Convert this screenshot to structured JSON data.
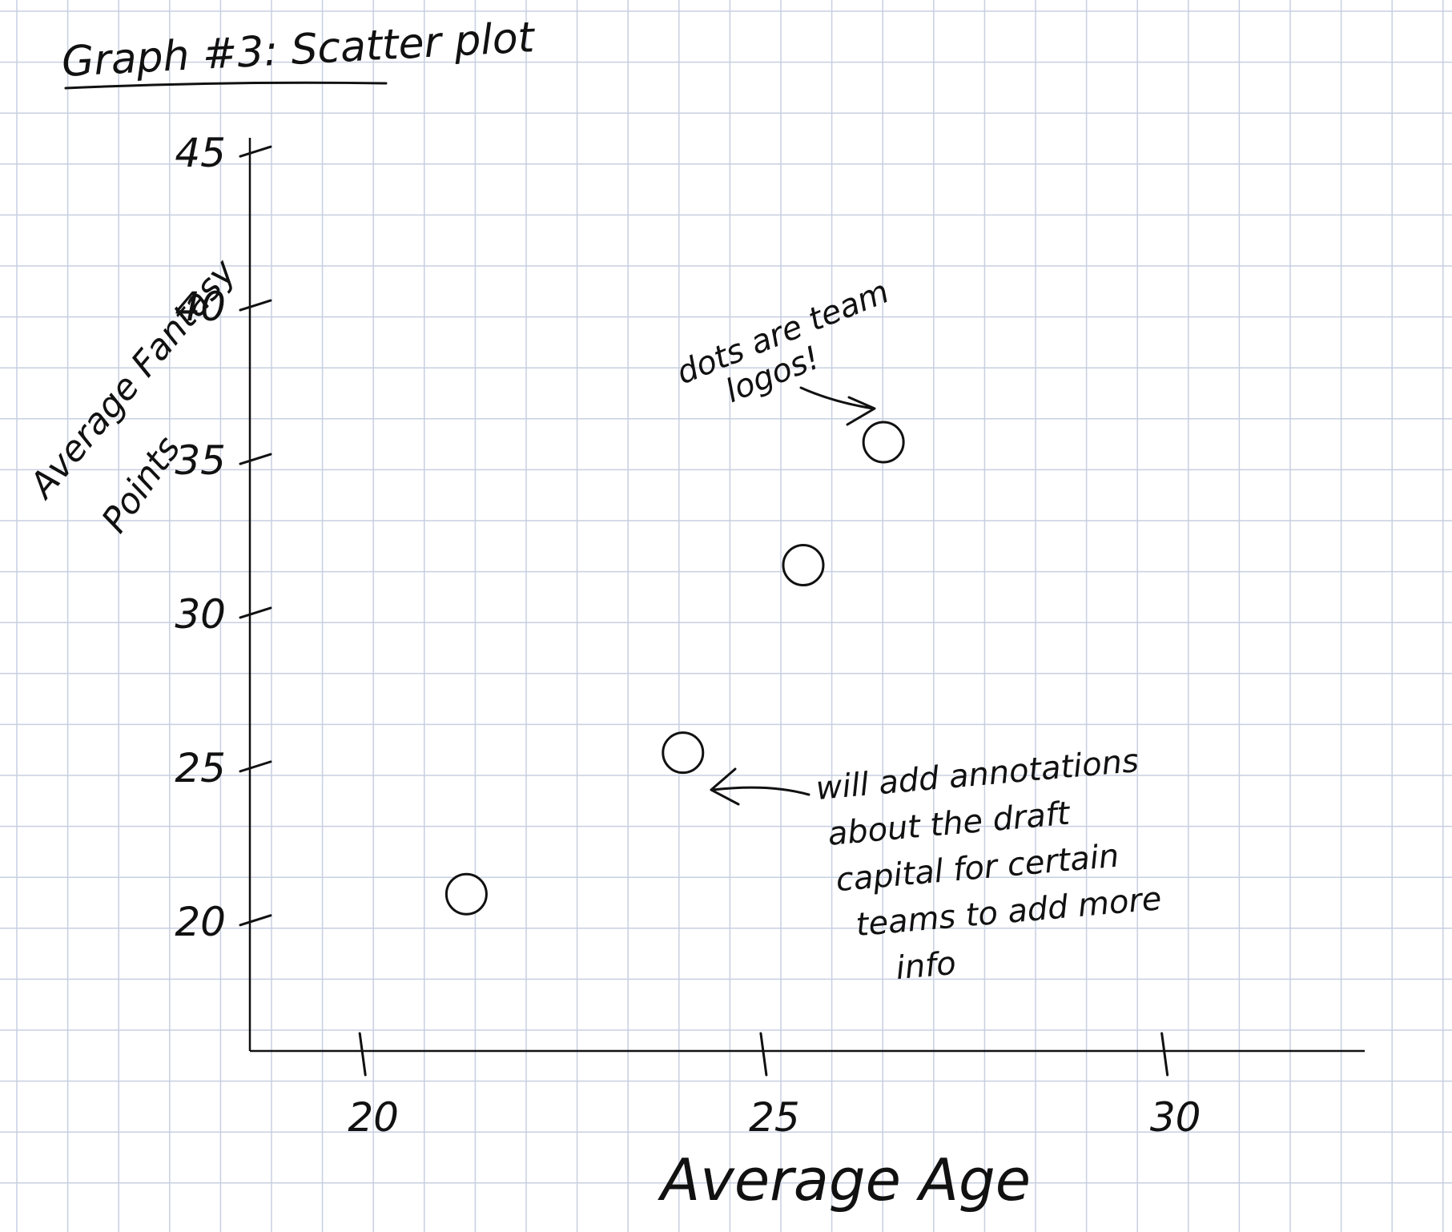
{
  "chart_data": {
    "type": "scatter",
    "title": "Graph #3: Scatter plot",
    "xlabel": "Average Age",
    "ylabel_lines": [
      "Average Fantasy",
      "Points"
    ],
    "xticks": [
      20,
      25,
      30
    ],
    "yticks": [
      20,
      25,
      30,
      35,
      40,
      45
    ],
    "xlim": [
      18.6,
      32.5
    ],
    "ylim": [
      15.8,
      45.5
    ],
    "points": [
      {
        "x": 21.3,
        "y": 20.9
      },
      {
        "x": 24.0,
        "y": 25.5
      },
      {
        "x": 25.5,
        "y": 31.6
      },
      {
        "x": 26.5,
        "y": 35.6
      }
    ],
    "annotations": {
      "logos": {
        "lines": [
          "dots are team",
          "logos!"
        ]
      },
      "draft": {
        "lines": [
          "will add annotations",
          "about the draft",
          "capital for certain",
          "teams to add more",
          "info"
        ]
      }
    },
    "grid": true,
    "colors": {
      "grid": "#c7cfe0",
      "ink": "#111111",
      "marker_fill": "#ffffff"
    }
  }
}
